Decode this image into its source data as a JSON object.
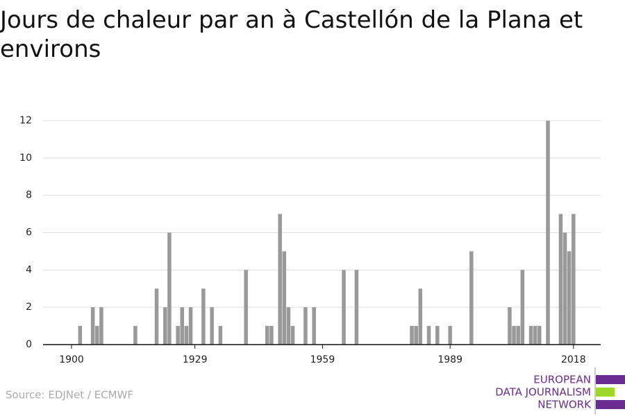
{
  "chart_data": {
    "type": "bar",
    "title": "Jours de chaleur par an à Castellón de la Plana et environs",
    "source": "Source: EDJNet / ECMWF",
    "logo": [
      "EUROPEAN",
      "DATA JOURNALISM",
      "NETWORK"
    ],
    "x": [
      1902,
      1905,
      1906,
      1907,
      1915,
      1920,
      1922,
      1923,
      1925,
      1926,
      1927,
      1928,
      1931,
      1933,
      1935,
      1941,
      1946,
      1947,
      1949,
      1950,
      1951,
      1952,
      1955,
      1957,
      1964,
      1967,
      1980,
      1981,
      1982,
      1984,
      1986,
      1989,
      1994,
      2003,
      2004,
      2005,
      2006,
      2008,
      2009,
      2010,
      2012,
      2015,
      2016,
      2017,
      2018
    ],
    "values": [
      1,
      2,
      1,
      2,
      1,
      3,
      2,
      6,
      1,
      2,
      1,
      2,
      3,
      2,
      1,
      4,
      1,
      1,
      7,
      5,
      2,
      1,
      2,
      2,
      4,
      4,
      1,
      1,
      3,
      1,
      1,
      1,
      5,
      2,
      1,
      1,
      4,
      1,
      1,
      1,
      12,
      7,
      6,
      5,
      7
    ],
    "color": "#999999",
    "xlim": [
      1893.3,
      2024.4
    ],
    "xticks": [
      1900,
      1929,
      1959,
      1989,
      2018
    ],
    "ylim": [
      0,
      12
    ],
    "yticks": [
      0,
      2,
      4,
      6,
      8,
      10,
      12
    ],
    "grid": true
  }
}
